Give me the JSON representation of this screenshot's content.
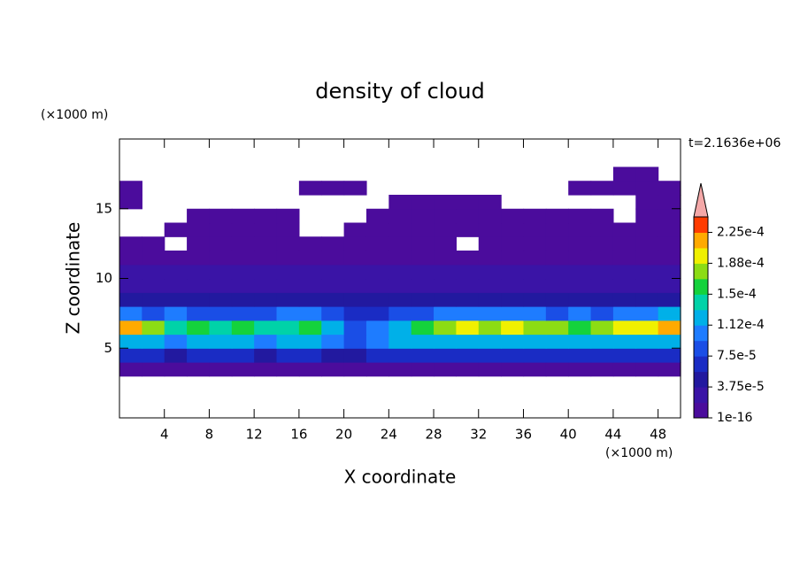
{
  "chart_data": {
    "type": "contour",
    "title": "density of cloud",
    "x_label": "X coordinate",
    "y_label": "Z coordinate",
    "x_unit": "(×1000 m)",
    "y_unit": "(×1000 m)",
    "annotation": "t=2.1636e+06",
    "xlim": [
      0,
      50
    ],
    "ylim": [
      0,
      20
    ],
    "xticks": [
      4,
      8,
      12,
      16,
      20,
      24,
      28,
      32,
      36,
      40,
      44,
      48
    ],
    "yticks": [
      5,
      10,
      15
    ],
    "x": [
      1,
      3,
      5,
      7,
      9,
      11,
      13,
      15,
      17,
      19,
      21,
      23,
      25,
      27,
      29,
      31,
      33,
      35,
      37,
      39,
      41,
      43,
      45,
      47,
      49
    ],
    "y": [
      3.5,
      4.5,
      5.5,
      6.5,
      7.5,
      8.5,
      9.5,
      10.5,
      11.5,
      12.5,
      13.5,
      14.5,
      15.5,
      16.5,
      17.5
    ],
    "z": [
      [
        1e-05,
        1e-05,
        1e-05,
        1e-05,
        1e-05,
        1e-05,
        1e-05,
        1e-05,
        1e-05,
        1e-05,
        1e-05,
        1e-05,
        1e-05,
        1e-05,
        1e-05,
        1e-05,
        1e-05,
        1e-05,
        1e-05,
        1e-05,
        1e-05,
        1e-05,
        1e-05,
        1e-05,
        1e-05
      ],
      [
        6e-05,
        6e-05,
        5e-05,
        6e-05,
        6e-05,
        6e-05,
        5e-05,
        6e-05,
        6e-05,
        5e-05,
        5e-05,
        6e-05,
        6e-05,
        6e-05,
        6e-05,
        6e-05,
        6e-05,
        6e-05,
        6e-05,
        6e-05,
        6e-05,
        6e-05,
        6e-05,
        6e-05,
        6e-05
      ],
      [
        0.00013,
        0.00012,
        0.00011,
        0.00012,
        0.00012,
        0.00012,
        0.00011,
        0.00012,
        0.00012,
        0.0001,
        9e-05,
        0.0001,
        0.00012,
        0.00013,
        0.00013,
        0.00013,
        0.00013,
        0.00013,
        0.00013,
        0.00013,
        0.00012,
        0.00013,
        0.00013,
        0.00013,
        0.00013
      ],
      [
        0.00021,
        0.00018,
        0.00014,
        0.00016,
        0.00015,
        0.00016,
        0.00015,
        0.00015,
        0.00016,
        0.00013,
        9e-05,
        0.0001,
        0.00012,
        0.00016,
        0.00018,
        0.00019,
        0.00018,
        0.00019,
        0.00018,
        0.00017,
        0.00016,
        0.00018,
        0.00019,
        0.0002,
        0.00021
      ],
      [
        0.00011,
        9e-05,
        0.0001,
        9e-05,
        9e-05,
        9e-05,
        9e-05,
        0.0001,
        0.0001,
        8e-05,
        6e-05,
        7e-05,
        8e-05,
        9e-05,
        0.00011,
        0.00011,
        0.0001,
        0.00011,
        0.0001,
        9e-05,
        0.0001,
        9e-05,
        0.0001,
        0.00011,
        0.00012
      ],
      [
        5e-05,
        5e-05,
        5e-05,
        5e-05,
        4.5e-05,
        5e-05,
        5e-05,
        5e-05,
        5e-05,
        5e-05,
        4.5e-05,
        4.5e-05,
        4.5e-05,
        5e-05,
        5e-05,
        5e-05,
        5e-05,
        5e-05,
        5e-05,
        5e-05,
        5e-05,
        5e-05,
        5e-05,
        5e-05,
        5e-05
      ],
      [
        3.5e-05,
        3.5e-05,
        3e-05,
        3e-05,
        3.5e-05,
        3.5e-05,
        3.5e-05,
        3e-05,
        3.5e-05,
        3.5e-05,
        3e-05,
        3e-05,
        3.5e-05,
        3.5e-05,
        3.5e-05,
        3e-05,
        3.5e-05,
        3.5e-05,
        3.5e-05,
        3.5e-05,
        3e-05,
        3.5e-05,
        3.5e-05,
        3.5e-05,
        3.5e-05
      ],
      [
        2.5e-05,
        2.5e-05,
        2e-05,
        2e-05,
        2.5e-05,
        2.5e-05,
        2.5e-05,
        2e-05,
        2.5e-05,
        2e-05,
        2e-05,
        2e-05,
        2.5e-05,
        2.5e-05,
        2e-05,
        2e-05,
        2.5e-05,
        2.5e-05,
        2e-05,
        2.5e-05,
        2e-05,
        2.5e-05,
        2.5e-05,
        2e-05,
        2.5e-05
      ],
      [
        1.5e-05,
        1.5e-05,
        1e-05,
        1.5e-05,
        1.5e-05,
        1.5e-05,
        1.5e-05,
        1.5e-05,
        1.5e-05,
        1.5e-05,
        1e-05,
        1e-05,
        1e-05,
        1.5e-05,
        1.5e-05,
        1e-05,
        1e-05,
        1.5e-05,
        1.5e-05,
        1e-05,
        1e-05,
        1e-05,
        1.5e-05,
        1.5e-05,
        1.5e-05
      ],
      [
        1e-05,
        1e-05,
        null,
        1e-05,
        1e-05,
        1e-05,
        1e-05,
        1e-05,
        1e-05,
        1e-05,
        1e-05,
        1e-05,
        1e-05,
        1e-05,
        1e-05,
        null,
        1e-05,
        1e-05,
        1e-05,
        1e-05,
        1e-05,
        1e-05,
        1e-05,
        1e-05,
        1e-05
      ],
      [
        null,
        null,
        1e-05,
        1e-05,
        1e-05,
        1e-05,
        1e-05,
        1e-05,
        null,
        null,
        1e-05,
        1e-05,
        1e-05,
        1e-05,
        1e-05,
        1e-05,
        1e-05,
        1e-05,
        1e-05,
        1e-05,
        1e-05,
        1e-05,
        1e-05,
        1e-05,
        1e-05
      ],
      [
        null,
        null,
        null,
        1e-05,
        1e-05,
        1e-05,
        1e-05,
        1e-05,
        null,
        null,
        null,
        1e-05,
        1e-05,
        1e-05,
        1e-05,
        1e-05,
        1e-05,
        1e-05,
        1e-05,
        1e-05,
        1e-05,
        1e-05,
        null,
        1e-05,
        1e-05
      ],
      [
        1e-05,
        null,
        null,
        null,
        null,
        null,
        null,
        null,
        null,
        null,
        null,
        null,
        1e-05,
        1e-05,
        1e-05,
        1e-05,
        1e-05,
        null,
        null,
        null,
        null,
        null,
        null,
        1e-05,
        1e-05
      ],
      [
        1e-05,
        null,
        null,
        null,
        null,
        null,
        null,
        null,
        1e-05,
        1e-05,
        1e-05,
        null,
        null,
        null,
        null,
        null,
        null,
        null,
        null,
        null,
        1e-05,
        1e-05,
        1e-05,
        1e-05,
        1e-05
      ],
      [
        null,
        null,
        null,
        null,
        null,
        null,
        null,
        null,
        null,
        null,
        null,
        null,
        null,
        null,
        null,
        null,
        null,
        null,
        null,
        null,
        null,
        null,
        1e-05,
        1e-05,
        null
      ]
    ],
    "colorbar": {
      "clim": [
        1e-16,
        0.00024375
      ],
      "colors": [
        "#4b0c9c",
        "#3a14a6",
        "#22199f",
        "#1a2cc4",
        "#1a4ee6",
        "#1e7cff",
        "#00b0e8",
        "#00d2a8",
        "#14d23c",
        "#8cdc14",
        "#f0f000",
        "#ffaa00",
        "#ff3c00"
      ],
      "extend_color": "#f4a8a8",
      "ticks": [
        {
          "value": 1e-16,
          "label": "1e-16"
        },
        {
          "value": 3.75e-05,
          "label": "3.75e-5"
        },
        {
          "value": 7.5e-05,
          "label": "7.5e-5"
        },
        {
          "value": 0.0001125,
          "label": "1.12e-4"
        },
        {
          "value": 0.00015,
          "label": "1.5e-4"
        },
        {
          "value": 0.0001875,
          "label": "1.88e-4"
        },
        {
          "value": 0.000225,
          "label": "2.25e-4"
        }
      ]
    }
  }
}
